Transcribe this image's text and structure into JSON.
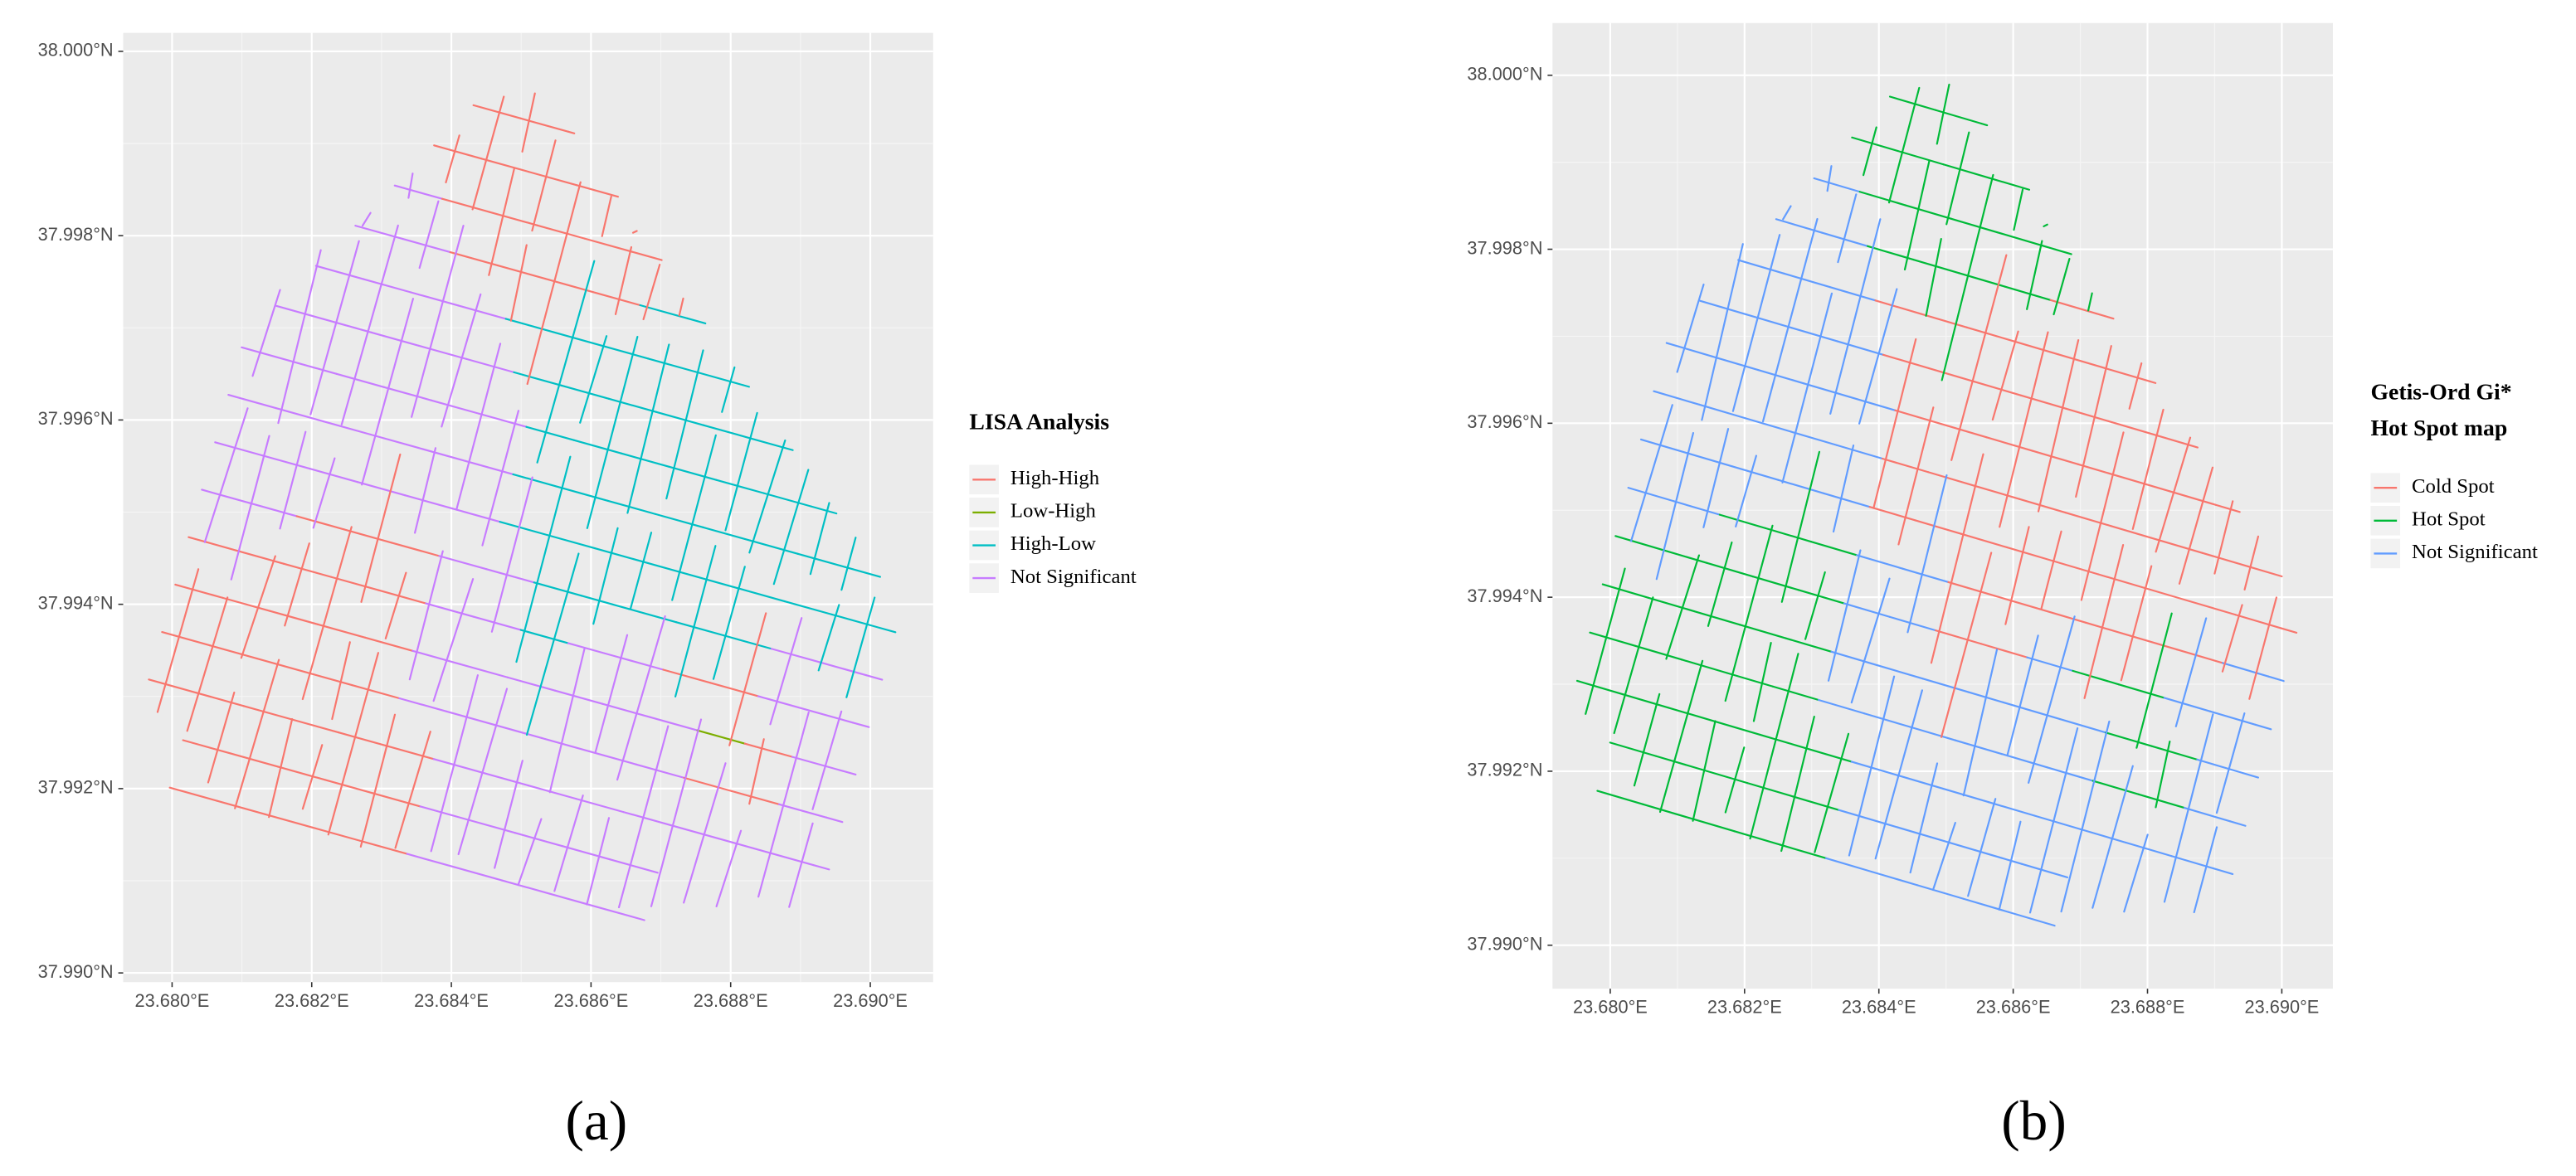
{
  "panels": [
    {
      "label": "(a)",
      "legend_title": [
        "LISA Analysis"
      ],
      "legend": [
        {
          "name": "High-High",
          "color": "#F8766D"
        },
        {
          "name": "Low-High",
          "color": "#7CAE00"
        },
        {
          "name": "High-Low",
          "color": "#00BFC4"
        },
        {
          "name": "Not Significant",
          "color": "#C77CFF"
        }
      ],
      "xlim": [
        23.6793,
        23.6909
      ],
      "ylim": [
        37.9899,
        38.0002
      ],
      "xticks": [
        {
          "value": 23.68,
          "label": "23.680°E"
        },
        {
          "value": 23.682,
          "label": "23.682°E"
        },
        {
          "value": 23.684,
          "label": "23.684°E"
        },
        {
          "value": 23.686,
          "label": "23.686°E"
        },
        {
          "value": 23.688,
          "label": "23.688°E"
        },
        {
          "value": 23.69,
          "label": "23.690°E"
        }
      ],
      "yticks": [
        {
          "value": 37.99,
          "label": "37.990°N"
        },
        {
          "value": 37.992,
          "label": "37.992°N"
        },
        {
          "value": 37.994,
          "label": "37.994°N"
        },
        {
          "value": 37.996,
          "label": "37.996°N"
        },
        {
          "value": 37.998,
          "label": "37.998°N"
        },
        {
          "value": 38.0,
          "label": "38.000°N"
        }
      ]
    },
    {
      "label": "(b)",
      "legend_title": [
        "Getis-Ord Gi*",
        "Hot Spot map"
      ],
      "legend": [
        {
          "name": "Cold Spot",
          "color": "#F8766D"
        },
        {
          "name": "Hot Spot",
          "color": "#00BA38"
        },
        {
          "name": "Not Significant",
          "color": "#619CFF"
        }
      ],
      "xlim": [
        23.67914,
        23.69076
      ],
      "ylim": [
        37.9895,
        38.0006
      ],
      "xticks": [
        {
          "value": 23.68,
          "label": "23.680°E"
        },
        {
          "value": 23.682,
          "label": "23.682°E"
        },
        {
          "value": 23.684,
          "label": "23.684°E"
        },
        {
          "value": 23.686,
          "label": "23.686°E"
        },
        {
          "value": 23.688,
          "label": "23.688°E"
        },
        {
          "value": 23.69,
          "label": "23.690°E"
        }
      ],
      "yticks": [
        {
          "value": 37.99,
          "label": "37.990°N"
        },
        {
          "value": 37.992,
          "label": "37.992°N"
        },
        {
          "value": 37.994,
          "label": "37.994°N"
        },
        {
          "value": 37.996,
          "label": "37.996°N"
        },
        {
          "value": 37.998,
          "label": "37.998°N"
        },
        {
          "value": 38.0,
          "label": "38.000°N"
        }
      ]
    }
  ]
}
